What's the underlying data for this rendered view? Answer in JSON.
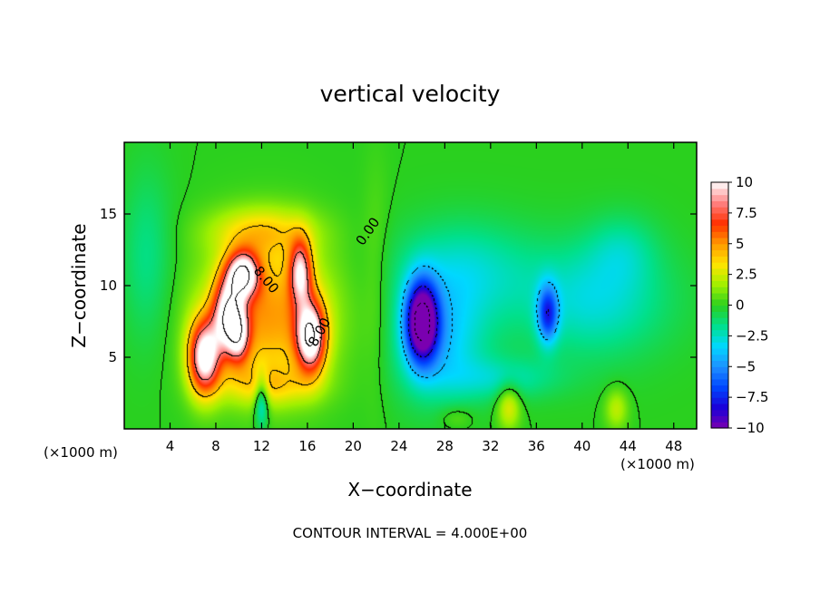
{
  "chart_data": {
    "type": "heatmap",
    "title": "vertical velocity",
    "xlabel": "X−coordinate",
    "ylabel": "Z−coordinate",
    "x_unit_left": "(×1000 m)",
    "x_unit_right": "(×1000 m)",
    "footer": "CONTOUR INTERVAL = 4.000E+00",
    "xlim": [
      0,
      50
    ],
    "ylim": [
      0,
      20
    ],
    "x_ticks": [
      4,
      8,
      12,
      16,
      20,
      24,
      28,
      32,
      36,
      40,
      44,
      48
    ],
    "x_tick_labels": [
      "4",
      "8",
      "12",
      "16",
      "20",
      "24",
      "28",
      "32",
      "36",
      "40",
      "44",
      "48"
    ],
    "y_ticks": [
      5,
      10,
      15
    ],
    "y_tick_labels": [
      "5",
      "10",
      "15"
    ],
    "colorbar": {
      "range": [
        -10,
        10
      ],
      "ticks": [
        10,
        7.5,
        5,
        2.5,
        0,
        -2.5,
        -5,
        -7.5,
        -10
      ],
      "tick_labels": [
        "10",
        "7.5",
        "5",
        "2.5",
        "0",
        "−2.5",
        "−5",
        "−7.5",
        "−10"
      ],
      "colors": [
        "#7a00b0",
        "#1a00d8",
        "#0046ff",
        "#1e90ff",
        "#00d8ff",
        "#00e08c",
        "#2ad01e",
        "#a0f000",
        "#ffe400",
        "#ff9a00",
        "#ff3000",
        "#ff8080",
        "#ffffff"
      ]
    },
    "contour_interval": 4.0,
    "contour_labels": [
      {
        "text": "8.00",
        "x": 12.1,
        "y": 10.2,
        "angle": 50
      },
      {
        "text": "8.00",
        "x": 17.4,
        "y": 6.6,
        "angle": -60
      },
      {
        "text": "0.00",
        "x": 21.6,
        "y": 13.6,
        "angle": -55
      }
    ],
    "features": [
      {
        "kind": "updraft",
        "x": 7.0,
        "y": 5.0,
        "sx": 1.4,
        "sy": 2.6,
        "w": 10
      },
      {
        "kind": "updraft",
        "x": 9.0,
        "y": 8.0,
        "sx": 1.3,
        "sy": 2.6,
        "w": 8
      },
      {
        "kind": "updraft",
        "x": 10.4,
        "y": 10.8,
        "sx": 1.4,
        "sy": 1.6,
        "w": 9.5
      },
      {
        "kind": "updraft",
        "x": 10.0,
        "y": 6.5,
        "sx": 1.0,
        "sy": 2.0,
        "w": 6
      },
      {
        "kind": "updraft",
        "x": 15.4,
        "y": 11.0,
        "sx": 1.0,
        "sy": 2.3,
        "w": 7.5
      },
      {
        "kind": "updraft",
        "x": 16.3,
        "y": 6.4,
        "sx": 1.3,
        "sy": 2.5,
        "w": 10
      },
      {
        "kind": "updraft",
        "x": 12.5,
        "y": 8.0,
        "sx": 5.5,
        "sy": 5.0,
        "w": 5
      },
      {
        "kind": "updraft",
        "x": 12.0,
        "y": 13.8,
        "sx": 4.5,
        "sy": 1.7,
        "w": 3
      },
      {
        "kind": "updraft",
        "x": 12.5,
        "y": 3.0,
        "sx": 4.0,
        "sy": 1.4,
        "w": 2.5
      },
      {
        "kind": "downdraft",
        "x": 12.0,
        "y": 2.0,
        "sx": 0.6,
        "sy": 1.8,
        "w": -4
      },
      {
        "kind": "downdraft",
        "x": 26.0,
        "y": 7.5,
        "sx": 1.4,
        "sy": 2.8,
        "w": -11
      },
      {
        "kind": "downdraft",
        "x": 27.5,
        "y": 6.0,
        "sx": 4.0,
        "sy": 4.0,
        "w": -3.5
      },
      {
        "kind": "downdraft",
        "x": 29.5,
        "y": 11.0,
        "sx": 6.0,
        "sy": 3.5,
        "w": -2.5
      },
      {
        "kind": "downdraft",
        "x": 37.0,
        "y": 8.0,
        "sx": 0.9,
        "sy": 2.0,
        "w": -6
      },
      {
        "kind": "downdraft",
        "x": 41.0,
        "y": 9.0,
        "sx": 6.5,
        "sy": 4.0,
        "w": -2.8
      },
      {
        "kind": "downdraft",
        "x": 43.5,
        "y": 12.5,
        "sx": 3.0,
        "sy": 2.5,
        "w": -1.5
      },
      {
        "kind": "downdraft",
        "x": 33.0,
        "y": 3.5,
        "sx": 5.0,
        "sy": 1.5,
        "w": -2.0
      },
      {
        "kind": "updraft",
        "x": 33.6,
        "y": 1.6,
        "sx": 1.0,
        "sy": 1.6,
        "w": 3.0
      },
      {
        "kind": "updraft",
        "x": 43.0,
        "y": 1.4,
        "sx": 1.0,
        "sy": 1.4,
        "w": 2.2
      },
      {
        "kind": "updraft",
        "x": 29.0,
        "y": 0.8,
        "sx": 1.5,
        "sy": 0.8,
        "w": 1.0
      }
    ]
  }
}
